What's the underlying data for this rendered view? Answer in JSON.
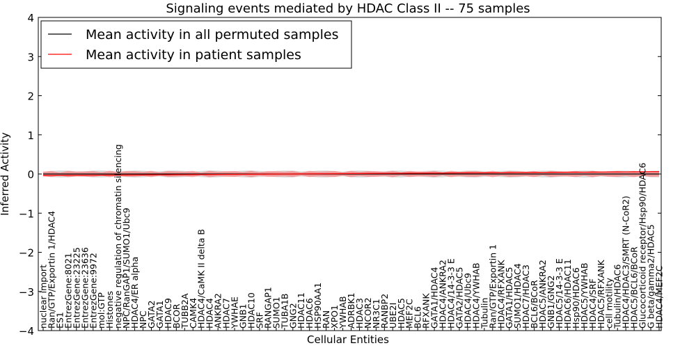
{
  "chart_data": {
    "type": "line",
    "title": "Signaling events mediated by HDAC Class II -- 75 samples",
    "xlabel": "Cellular Entities",
    "ylabel": "Inferred Activity",
    "ylim": [
      -4,
      4
    ],
    "yticks": [
      -4,
      -3,
      -2,
      -1,
      0,
      1,
      2,
      3,
      4
    ],
    "ytick_labels": [
      "−4",
      "−3",
      "−2",
      "−1",
      "0",
      "1",
      "2",
      "3",
      "4"
    ],
    "legend_position": "top-left",
    "series": [
      {
        "name": "Mean activity in all permuted samples",
        "color": "#000000",
        "values_start": 0.0,
        "values_end": 0.0
      },
      {
        "name": "Mean activity in patient samples",
        "color": "#ff0000",
        "values_start": -0.04,
        "values_end": 0.06
      }
    ],
    "categories": [
      "nuclear import",
      "Ran/GTP/Exportin 1/HDAC4",
      "ES1",
      "EntrezGene:8021",
      "EntrezGene:23225",
      "EntrezGene:23636",
      "EntrezGene:9972",
      "mol:GTP",
      "Histones",
      "negative regulation of chromatin silencing",
      "NPC/RanGAP1/SUMO1/Ubc9",
      "HDAC4/ER alpha",
      "NPC",
      "GATA2",
      "GATA1",
      "HDAC9",
      "BCOR",
      "TUBB2A",
      "CAMK4",
      "HDAC4/CaMK II delta B",
      "HDAC4",
      "ANKRA2",
      "HDAC7",
      "YWHAE",
      "GNB1",
      "HDAC10",
      "SRF",
      "RANGAP1",
      "SUMO1",
      "TUBA1B",
      "GNG2",
      "HDAC11",
      "HDAC6",
      "HSP90AA1",
      "RAN",
      "XPO1",
      "YWHAB",
      "ADRBK1",
      "HDAC3",
      "NCOR2",
      "NR3C1",
      "RANBP2",
      "UBE2I",
      "HDAC5",
      "MEF2C",
      "BCL6",
      "RFXANK",
      "GATA1/HDAC4",
      "HDAC4/ANKRA2",
      "HDAC4/14-3-3 E",
      "GATA2/HDAC5",
      "HDAC4/Ubc9",
      "HDAC4/YWHAB",
      "Tubulin",
      "Ran/GTP/Exportin 1",
      "HDAC4/RFXANK",
      "GATA1/HDAC5",
      "SUMO1/HDAC4",
      "HDAC7/HDAC3",
      "BCL6/BCoR",
      "HDAC5/ANKRA2",
      "GNB1/GNG2",
      "HDAC5/14-3-3 E",
      "HDAC6/HDAC11",
      "Hsp90/HDAC6",
      "HDAC5/YWHAB",
      "HDAC4/SRF",
      "HDAC5/RFXANK",
      "cell motility",
      "Tubulin/HDAC6",
      "HDAC4/HDAC3/SMRT (N-CoR2)",
      "HDAC5/BCL6/BCoR",
      "Glucocorticoid receptor/Hsp90/HDAC6",
      "G beta/gamma2/HDAC5",
      "HDAC4/MEF2C"
    ]
  }
}
